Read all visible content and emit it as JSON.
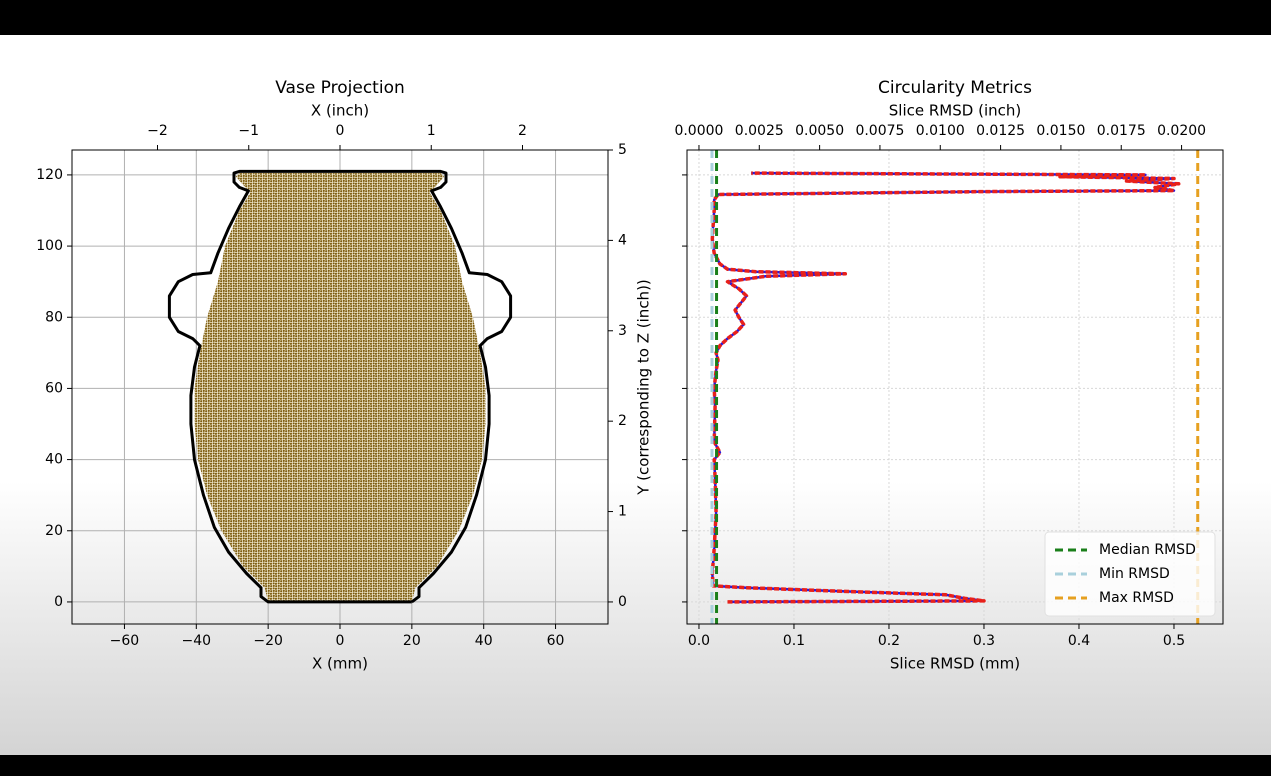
{
  "chart_data": [
    {
      "type": "line",
      "title": "Vase Projection",
      "xlabel": "X (mm)",
      "x2label": "X (inch)",
      "y2label": "Y (corresponding to Z (inch))",
      "xlim": [
        -74.6,
        74.6
      ],
      "xticks": [
        {
          "value": -60,
          "label": "−60"
        },
        {
          "value": -40,
          "label": "−40"
        },
        {
          "value": -20,
          "label": "−20"
        },
        0,
        20,
        40,
        60
      ],
      "ylim": [
        -6.2,
        127
      ],
      "yticks": [
        0,
        20,
        40,
        60,
        80,
        100,
        120
      ],
      "x2lim": [
        -2.937,
        2.937
      ],
      "x2ticks": [
        {
          "value": -2,
          "label": "−2"
        },
        {
          "value": -1,
          "label": "−1"
        },
        0,
        1,
        2
      ],
      "y2lim": [
        -0.244,
        5.0
      ],
      "y2ticks": [
        0,
        1,
        2,
        3,
        4,
        5
      ],
      "grid": "solid",
      "series": [
        {
          "color": "#7d5c0e",
          "fill": true,
          "x": [
            20,
            21,
            27,
            33,
            37,
            39.5,
            40.5,
            40.5,
            39,
            37,
            34,
            32,
            28,
            25,
            29,
            28,
            -28,
            -29,
            -25,
            -28,
            -32,
            -34,
            -37,
            -39,
            -40.5,
            -40.5,
            -39.5,
            -37,
            -33,
            -27,
            -21,
            -20
          ],
          "values": [
            0,
            4,
            10,
            20,
            30,
            40,
            50,
            60,
            70,
            80,
            90,
            100,
            110,
            115,
            119.5,
            120.5,
            120.5,
            119.5,
            115,
            110,
            100,
            90,
            80,
            70,
            60,
            50,
            40,
            30,
            20,
            10,
            4,
            0
          ]
        },
        {
          "color": "#000000",
          "fill": false,
          "x": [
            20,
            22,
            22,
            26,
            31,
            35,
            38,
            40.5,
            41.5,
            41.5,
            40.5,
            39,
            41,
            45,
            47.5,
            47.5,
            45,
            41,
            36,
            34,
            31,
            28,
            25.5,
            28,
            29.5,
            29.5,
            28,
            -28,
            -29.5,
            -29.5,
            -28,
            -25.5,
            -28,
            -31,
            -34,
            -36,
            -41,
            -45,
            -47.5,
            -47.5,
            -45,
            -41,
            -39,
            -40.5,
            -41.5,
            -41.5,
            -40.5,
            -38,
            -35,
            -31,
            -26,
            -22,
            -22,
            -20,
            20
          ],
          "values": [
            0,
            1.5,
            4,
            8,
            14,
            21,
            30,
            40,
            50,
            58,
            66,
            72,
            74,
            76,
            80,
            86,
            90,
            92,
            92.5,
            98,
            105,
            111,
            115.5,
            116.5,
            118,
            120.5,
            121,
            121,
            120.5,
            118,
            116.5,
            115.5,
            111,
            105,
            98,
            92.5,
            92,
            90,
            86,
            80,
            76,
            74,
            72,
            66,
            58,
            50,
            40,
            30,
            21,
            14,
            8,
            4,
            1.5,
            0,
            0
          ]
        }
      ]
    },
    {
      "type": "line",
      "title": "Circularity Metrics",
      "xlabel": "Slice RMSD (mm)",
      "x2label": "Slice RMSD (inch)",
      "xlim": [
        -0.0126,
        0.5516
      ],
      "xticks": [
        {
          "value": 0,
          "label": "0.0"
        },
        0.1,
        0.2,
        0.3,
        0.4,
        0.5
      ],
      "ylim": [
        -6.2,
        127
      ],
      "yticks": [
        0,
        20,
        40,
        60,
        80,
        100,
        120
      ],
      "ytick_labels": false,
      "x2lim": [
        -0.000496,
        0.021717
      ],
      "x2ticks": [
        {
          "value": 0,
          "label": "0.0000"
        },
        {
          "value": 0.0025,
          "label": "0.0025"
        },
        {
          "value": 0.005,
          "label": "0.0050"
        },
        {
          "value": 0.0075,
          "label": "0.0075"
        },
        {
          "value": 0.01,
          "label": "0.0100"
        },
        {
          "value": 0.0125,
          "label": "0.0125"
        },
        {
          "value": 0.015,
          "label": "0.0150"
        },
        {
          "value": 0.0175,
          "label": "0.0175"
        },
        {
          "value": 0.02,
          "label": "0.0200"
        }
      ],
      "grid": "dotted",
      "legend": "lower right",
      "series": [
        {
          "color": "#e8201a",
          "edge_color": "#2b1ad9",
          "fill": false,
          "x": [
            0.03,
            0.3,
            0.28,
            0.26,
            0.15,
            0.05,
            0.015,
            0.014,
            0.016,
            0.018,
            0.017,
            0.016,
            0.022,
            0.016,
            0.017,
            0.016,
            0.018,
            0.02,
            0.018,
            0.022,
            0.03,
            0.04,
            0.047,
            0.042,
            0.038,
            0.044,
            0.05,
            0.042,
            0.03,
            0.07,
            0.154,
            0.06,
            0.03,
            0.022,
            0.016,
            0.014,
            0.015,
            0.016,
            0.016,
            0.02,
            0.3,
            0.5,
            0.48,
            0.505,
            0.45,
            0.5,
            0.38,
            0.47,
            0.055
          ],
          "values": [
            0,
            0.3,
            1,
            2,
            3,
            4,
            4.5,
            8,
            15,
            25,
            35,
            40,
            42,
            45,
            55,
            60,
            65,
            68,
            70,
            72,
            74,
            76,
            78,
            80,
            82,
            84,
            86,
            88,
            90,
            91.5,
            92.2,
            92.8,
            93.5,
            95,
            98,
            102,
            106,
            110,
            113,
            114.5,
            115.3,
            115.6,
            116.5,
            117.5,
            118.3,
            119,
            119.5,
            120,
            120.5
          ]
        }
      ],
      "vlines": [
        {
          "name": "Median RMSD",
          "value": 0.0185,
          "color": "#1a7f1a"
        },
        {
          "name": "Min RMSD",
          "value": 0.0137,
          "color": "#a9d0dc"
        },
        {
          "name": "Max RMSD",
          "value": 0.525,
          "color": "#e6a020"
        }
      ]
    }
  ]
}
